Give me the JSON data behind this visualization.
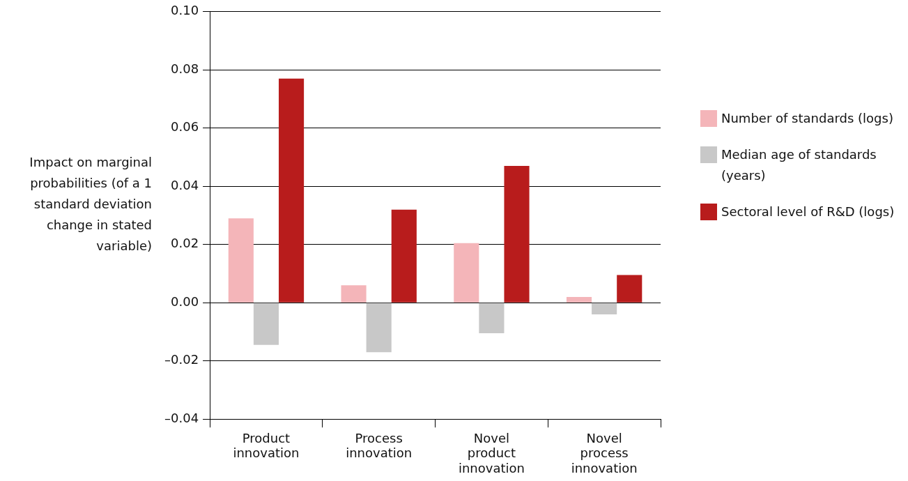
{
  "chart_data": {
    "type": "bar",
    "categories": [
      "Product innovation",
      "Process innovation",
      "Novel product innovation",
      "Novel process innovation"
    ],
    "series": [
      {
        "name": "Number of standards (logs)",
        "color": "#f4b5b9",
        "values": [
          0.029,
          0.006,
          0.0205,
          0.002
        ]
      },
      {
        "name": "Median age of standards (years)",
        "color": "#c8c8c8",
        "values": [
          -0.0145,
          -0.017,
          -0.0105,
          -0.004
        ]
      },
      {
        "name": "Sectoral level of R&D (logs)",
        "color": "#b81c1c",
        "values": [
          0.077,
          0.032,
          0.047,
          0.0095
        ]
      }
    ],
    "ylabel": "Impact on marginal probabilities (of a 1 standard deviation change in stated variable)",
    "ylim": [
      -0.04,
      0.1
    ],
    "yticks": [
      {
        "value": -0.04,
        "label": "–0.04"
      },
      {
        "value": -0.02,
        "label": "–0.02"
      },
      {
        "value": 0,
        "label": "0.00"
      },
      {
        "value": 0.02,
        "label": "0.02"
      },
      {
        "value": 0.04,
        "label": "0.04"
      },
      {
        "value": 0.06,
        "label": "0.06"
      },
      {
        "value": 0.08,
        "label": "0.08"
      },
      {
        "value": 0.1,
        "label": "0.10"
      }
    ],
    "grid": "y",
    "legend": "right"
  }
}
